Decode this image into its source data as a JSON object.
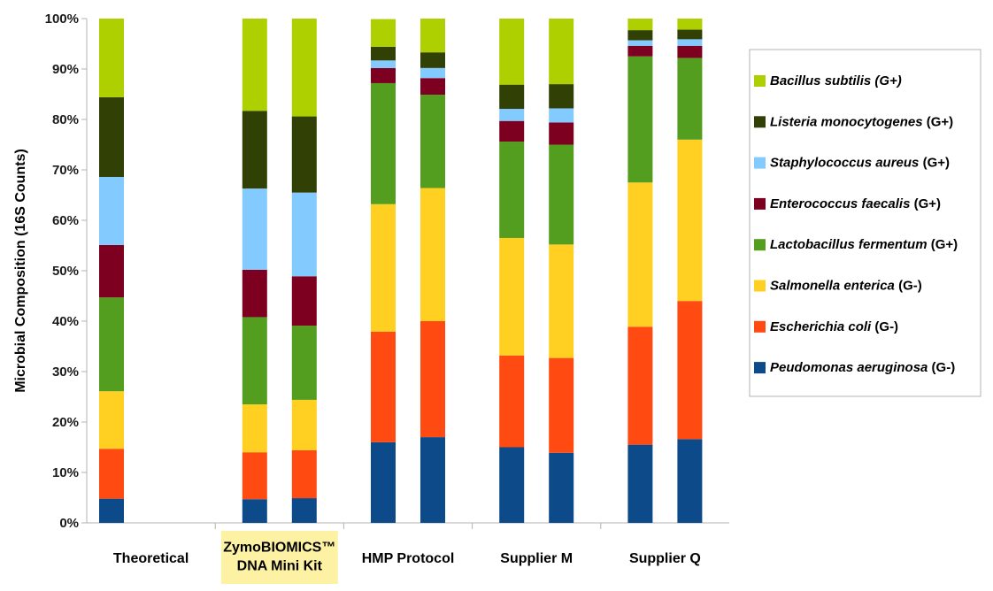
{
  "chart_data": {
    "type": "bar",
    "stacked": true,
    "percent": true,
    "ylabel": "Microbial Composition (16S Counts)",
    "ylim": [
      0,
      100
    ],
    "yticks": [
      "0%",
      "10%",
      "20%",
      "30%",
      "40%",
      "50%",
      "60%",
      "70%",
      "80%",
      "90%",
      "100%"
    ],
    "grid": false,
    "legend_position": "right",
    "groups": [
      {
        "label": [
          "Theoretical"
        ],
        "highlight": false,
        "bars": 1
      },
      {
        "label": [
          "ZymoBIOMICS™",
          "DNA Mini Kit"
        ],
        "highlight": true,
        "highlight_color": "#fdf1a4",
        "bars": 2
      },
      {
        "label": [
          "HMP Protocol"
        ],
        "highlight": false,
        "bars": 2
      },
      {
        "label": [
          "Supplier M"
        ],
        "highlight": false,
        "bars": 2
      },
      {
        "label": [
          "Supplier Q"
        ],
        "highlight": false,
        "bars": 2
      }
    ],
    "series": [
      {
        "name": "Peudomonas aeruginosa",
        "suffix": " (G-)",
        "color": "#0d4a8a",
        "values": [
          4.8,
          4.7,
          4.9,
          16.0,
          17.0,
          15.0,
          13.9,
          15.5,
          16.6
        ]
      },
      {
        "name": "Escherichia coli",
        "suffix": " (G-)",
        "color": "#ff4a12",
        "values": [
          9.9,
          9.3,
          9.5,
          21.9,
          23.0,
          18.2,
          18.8,
          23.4,
          27.4
        ]
      },
      {
        "name": "Salmonella enterica",
        "suffix": " (G-)",
        "color": "#ffd021",
        "values": [
          11.4,
          9.5,
          10.0,
          25.3,
          26.4,
          23.3,
          22.5,
          28.6,
          32.0
        ]
      },
      {
        "name": "Lactobacillus fermentum",
        "suffix": " (G+)",
        "color": "#549e1f",
        "values": [
          18.6,
          17.3,
          14.7,
          24.0,
          18.5,
          19.1,
          19.8,
          25.0,
          16.2
        ]
      },
      {
        "name": "Enterococcus faecalis",
        "suffix": " (G+)",
        "color": "#7d0021",
        "values": [
          10.4,
          9.4,
          9.8,
          3.0,
          3.3,
          4.1,
          4.4,
          2.1,
          2.4
        ]
      },
      {
        "name": "Staphylococcus aureus",
        "suffix": " (G+)",
        "color": "#83caff",
        "values": [
          13.5,
          16.1,
          16.6,
          1.5,
          2.0,
          2.4,
          2.8,
          1.1,
          1.3
        ]
      },
      {
        "name": "Listeria monocytogenes",
        "suffix": " (G+)",
        "color": "#314004",
        "values": [
          15.8,
          15.4,
          15.1,
          2.7,
          3.1,
          4.8,
          4.8,
          2.0,
          1.9
        ]
      },
      {
        "name": "Bacillus subtilis",
        "suffix": " (G+)",
        "color": "#aecf00",
        "values": [
          15.6,
          18.3,
          19.4,
          5.5,
          6.7,
          13.1,
          13.0,
          2.3,
          2.2
        ]
      }
    ],
    "legend_order": [
      "Bacillus subtilis",
      "Listeria monocytogenes",
      "Staphylococcus aureus",
      "Enterococcus faecalis",
      "Lactobacillus fermentum",
      "Salmonella enterica",
      "Escherichia coli",
      "Peudomonas aeruginosa"
    ],
    "legend_italic_suffix": {
      "Bacillus subtilis": true
    }
  }
}
